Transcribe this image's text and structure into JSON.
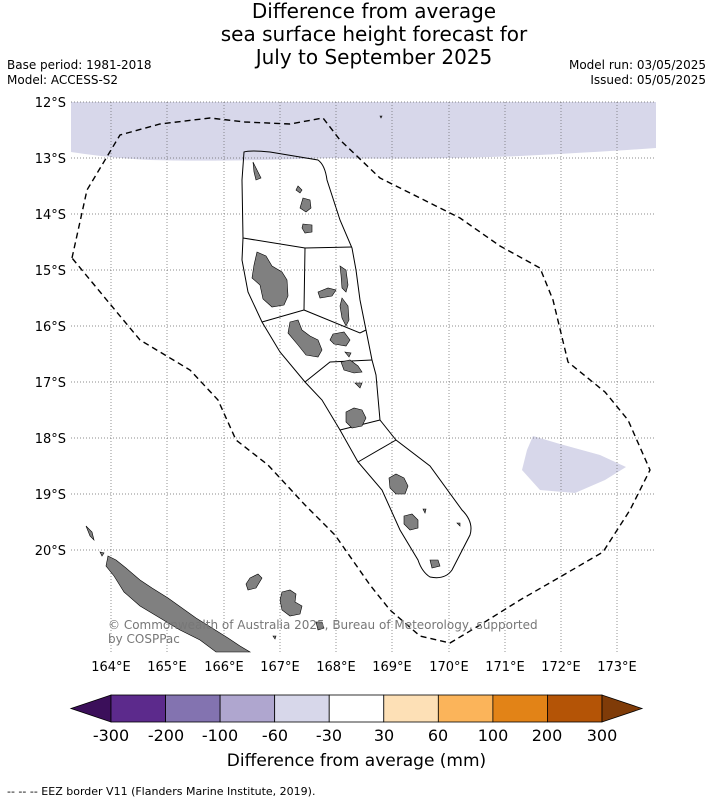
{
  "header": {
    "title_lines": [
      "Difference from average",
      "sea surface height forecast for",
      "July to September 2025"
    ],
    "base_period": "Base period: 1981-2018",
    "model": "Model: ACCESS-S2",
    "model_run": "Model run: 03/05/2025",
    "issued": "Issued: 05/05/2025"
  },
  "map": {
    "lat_labels": [
      "12°S",
      "13°S",
      "14°S",
      "15°S",
      "16°S",
      "17°S",
      "18°S",
      "19°S",
      "20°S"
    ],
    "lon_labels": [
      "164°E",
      "165°E",
      "166°E",
      "167°E",
      "168°E",
      "169°E",
      "170°E",
      "171°E",
      "172°E",
      "173°E"
    ],
    "copyright_line1": "© Commonwealth of Australia 2025, Bureau of Meteorology, supported",
    "copyright_line2": "by COSPPac"
  },
  "colorbar": {
    "title": "Difference from average (mm)",
    "tick_labels": [
      "-300",
      "-200",
      "-100",
      "-60",
      "-30",
      "30",
      "60",
      "100",
      "200",
      "300"
    ],
    "colors": [
      "#3b0f5a",
      "#5c2a8c",
      "#8373b0",
      "#afa6cf",
      "#d7d7ea",
      "#ffffff",
      "#fde0b6",
      "#fbb45a",
      "#e28317",
      "#b45406",
      "#7f3b08"
    ]
  },
  "footer": {
    "legend_text": "--  --  -- EEZ border V11 (Flanders Marine Institute, 2019)."
  }
}
